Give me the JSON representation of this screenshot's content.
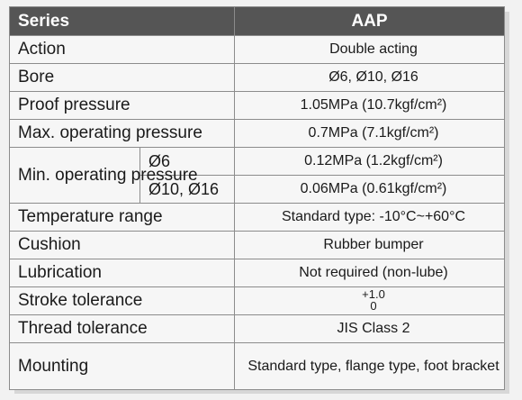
{
  "header": {
    "series_label": "Series",
    "value_label": "AAP"
  },
  "rows": {
    "action": {
      "label": "Action",
      "value": "Double acting"
    },
    "bore": {
      "label": "Bore",
      "value": "Ø6, Ø10, Ø16"
    },
    "proof": {
      "label": "Proof pressure",
      "value": "1.05MPa (10.7kgf/cm²)"
    },
    "max_op": {
      "label": "Max. operating pressure",
      "value": "0.7MPa (7.1kgf/cm²)"
    },
    "min_op": {
      "label": "Min. operating pressure",
      "sub1": {
        "bore": "Ø6",
        "value": "0.12MPa (1.2kgf/cm²)"
      },
      "sub2": {
        "bore": "Ø10, Ø16",
        "value": "0.06MPa (0.61kgf/cm²)"
      }
    },
    "temp": {
      "label": "Temperature range",
      "value": "Standard type: -10°C~+60°C"
    },
    "cushion": {
      "label": "Cushion",
      "value": "Rubber bumper"
    },
    "lubrication": {
      "label": "Lubrication",
      "value": "Not required (non-lube)"
    },
    "stroke": {
      "label": "Stroke tolerance",
      "upper": "+1.0",
      "lower": "0"
    },
    "thread": {
      "label": "Thread tolerance",
      "value": "JIS Class 2"
    },
    "mounting": {
      "label": "Mounting",
      "value": "Standard type, flange type, foot bracket"
    }
  },
  "colors": {
    "header_bg": "#555555",
    "border": "#8c8c8c",
    "cell_bg": "#f6f6f6"
  }
}
